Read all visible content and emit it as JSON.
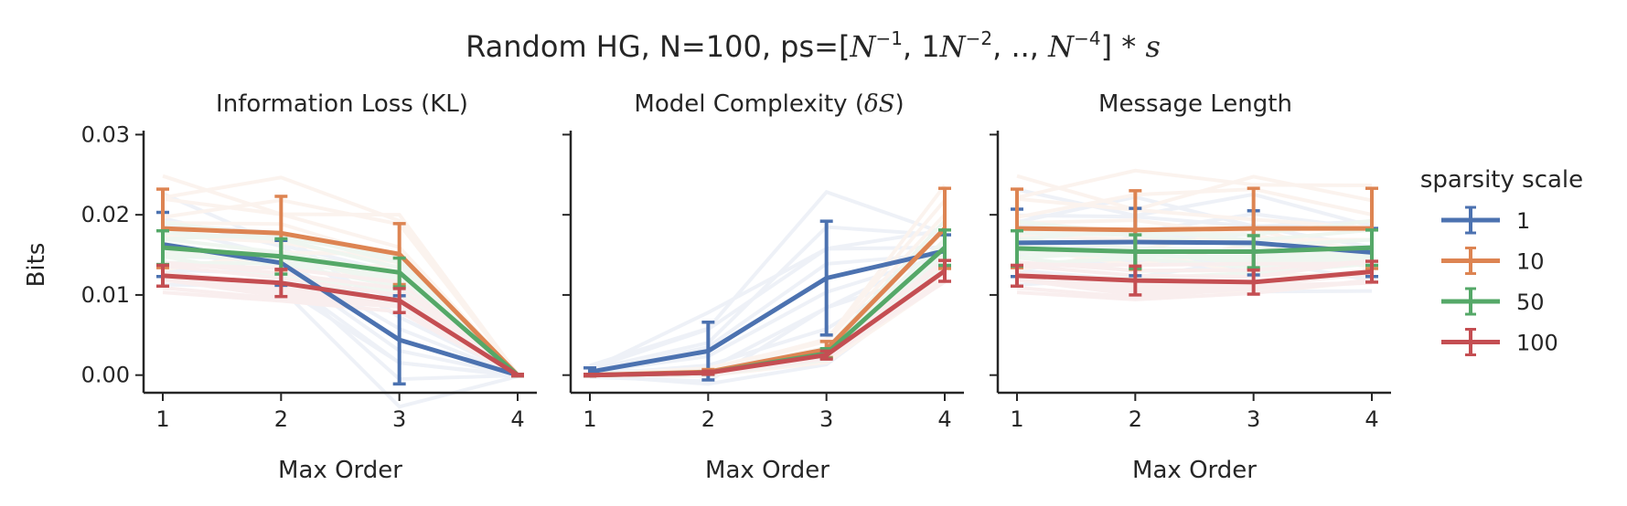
{
  "figure": {
    "title_prefix": "Random HG, N=100, ps=[",
    "title_m1_base": "N",
    "title_m1_exp": "−1",
    "title_sep1": ", 1",
    "title_m2_base": "N",
    "title_m2_exp": "−2",
    "title_sep2": ", ..,  ",
    "title_m3_base": "N",
    "title_m3_exp": "−4",
    "title_suffix": "] * ",
    "title_s": "s",
    "ylabel": "Bits"
  },
  "legend": {
    "title": "sparsity scale",
    "placement": "right"
  },
  "colors": {
    "series_1": "#4c72b0",
    "series_10": "#dd8452",
    "series_50": "#55a868",
    "series_100": "#c44e52"
  },
  "chart_data": [
    {
      "type": "line",
      "title": "Information Loss (KL)",
      "xlabel": "Max Order",
      "ylabel": "Bits",
      "x": [
        1,
        2,
        3,
        4
      ],
      "xticks": [
        "1",
        "2",
        "3",
        "4"
      ],
      "ylim": [
        -0.0022,
        0.0305
      ],
      "yticks": [
        "0.00",
        "0.01",
        "0.02",
        "0.03"
      ],
      "ytick_values": [
        0,
        0.01,
        0.02,
        0.03
      ],
      "grid": false,
      "series": [
        {
          "name": "1",
          "color": "#4c72b0",
          "values": [
            0.0163,
            0.014,
            0.0044,
            0.0
          ],
          "err": [
            0.004,
            0.0028,
            0.0055,
            0.0001
          ]
        },
        {
          "name": "10",
          "color": "#dd8452",
          "values": [
            0.0183,
            0.0177,
            0.0151,
            0.0
          ],
          "err": [
            0.0049,
            0.0046,
            0.0038,
            0.0001
          ]
        },
        {
          "name": "50",
          "color": "#55a868",
          "values": [
            0.0159,
            0.0148,
            0.0128,
            0.0
          ],
          "err": [
            0.0021,
            0.0022,
            0.0018,
            0.0001
          ]
        },
        {
          "name": "100",
          "color": "#c44e52",
          "values": [
            0.0124,
            0.0115,
            0.0093,
            0.0
          ],
          "err": [
            0.0013,
            0.0017,
            0.0015,
            0.0001
          ]
        }
      ]
    },
    {
      "type": "line",
      "title_prefix": "Model Complexity (",
      "title_math": "δS",
      "title_suffix": ")",
      "xlabel": "Max Order",
      "x": [
        1,
        2,
        3,
        4
      ],
      "xticks": [
        "1",
        "2",
        "3",
        "4"
      ],
      "ylim": [
        -0.0022,
        0.0305
      ],
      "grid": false,
      "series": [
        {
          "name": "1",
          "color": "#4c72b0",
          "values": [
            0.0004,
            0.003,
            0.0121,
            0.0155
          ],
          "err": [
            0.0005,
            0.0036,
            0.0071,
            0.002
          ]
        },
        {
          "name": "10",
          "color": "#dd8452",
          "values": [
            0.0,
            0.0004,
            0.0032,
            0.0183
          ],
          "err": [
            0.0001,
            0.0003,
            0.001,
            0.005
          ]
        },
        {
          "name": "50",
          "color": "#55a868",
          "values": [
            0.0,
            0.0003,
            0.0027,
            0.0159
          ],
          "err": [
            0.0001,
            0.0002,
            0.0006,
            0.0022
          ]
        },
        {
          "name": "100",
          "color": "#c44e52",
          "values": [
            0.0,
            0.0003,
            0.0025,
            0.013
          ],
          "err": [
            0.0001,
            0.0002,
            0.0005,
            0.0013
          ]
        }
      ]
    },
    {
      "type": "line",
      "title": "Message Length",
      "xlabel": "Max Order",
      "x": [
        1,
        2,
        3,
        4
      ],
      "xticks": [
        "1",
        "2",
        "3",
        "4"
      ],
      "ylim": [
        -0.0022,
        0.0305
      ],
      "grid": false,
      "series": [
        {
          "name": "1",
          "color": "#4c72b0",
          "values": [
            0.0165,
            0.0166,
            0.0165,
            0.0153
          ],
          "err": [
            0.0042,
            0.0042,
            0.004,
            0.003
          ]
        },
        {
          "name": "10",
          "color": "#dd8452",
          "values": [
            0.0183,
            0.0181,
            0.0183,
            0.0183
          ],
          "err": [
            0.0049,
            0.0049,
            0.005,
            0.005
          ]
        },
        {
          "name": "50",
          "color": "#55a868",
          "values": [
            0.0158,
            0.0154,
            0.0154,
            0.0159
          ],
          "err": [
            0.0022,
            0.0021,
            0.002,
            0.0022
          ]
        },
        {
          "name": "100",
          "color": "#c44e52",
          "values": [
            0.0124,
            0.0118,
            0.0116,
            0.0129
          ],
          "err": [
            0.0013,
            0.0018,
            0.0015,
            0.0013
          ]
        }
      ]
    }
  ]
}
